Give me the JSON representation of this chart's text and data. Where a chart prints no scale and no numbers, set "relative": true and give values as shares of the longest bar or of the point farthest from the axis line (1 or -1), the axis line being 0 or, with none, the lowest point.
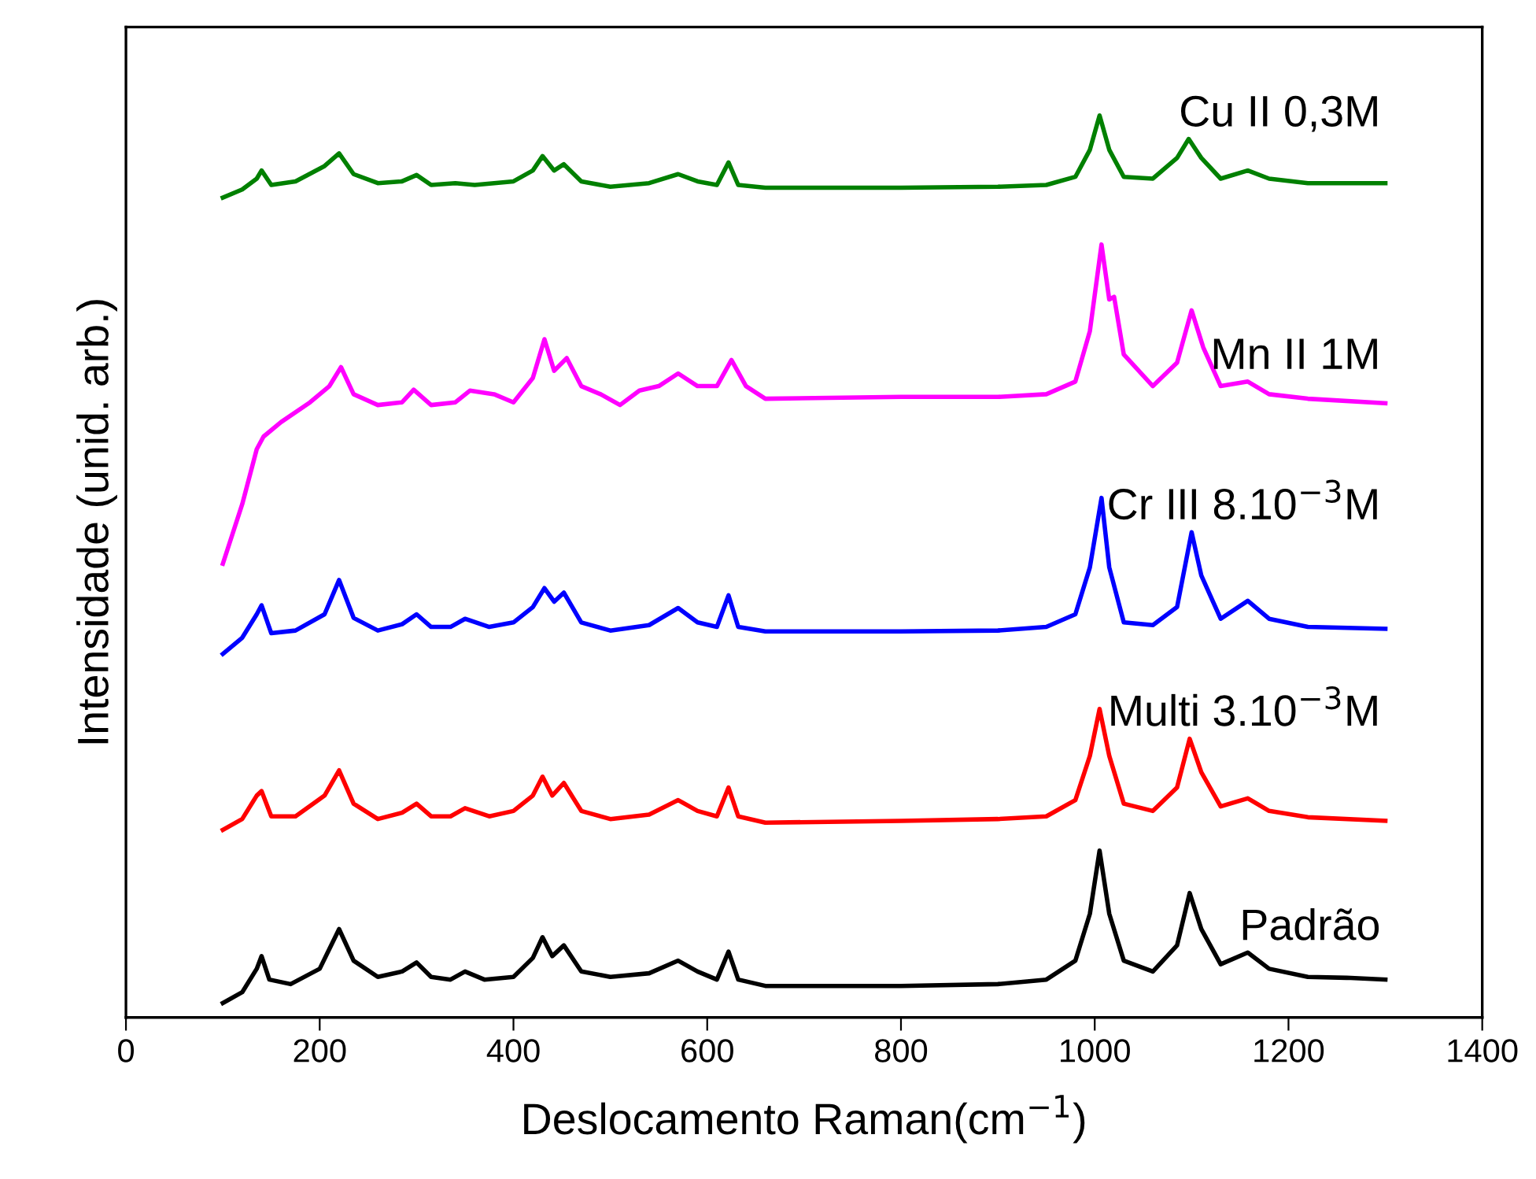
{
  "chart_data": {
    "type": "line",
    "relative": true,
    "xlabel": "Deslocamento Raman(cm$^{−1}$)",
    "ylabel": "Intensidade (unid. arb.)",
    "xlim": [
      0,
      1400
    ],
    "xticks": [
      0,
      200,
      400,
      600,
      800,
      1000,
      1200,
      1400
    ],
    "grid": false,
    "legend": false,
    "marker": "none",
    "line_style": "solid",
    "series": [
      {
        "name": "Padrão",
        "color": "#000000",
        "x": [
          100,
          120,
          135,
          140,
          148,
          170,
          200,
          220,
          235,
          260,
          285,
          300,
          315,
          335,
          350,
          370,
          400,
          420,
          430,
          440,
          452,
          470,
          500,
          540,
          570,
          590,
          610,
          622,
          632,
          660,
          700,
          800,
          900,
          950,
          980,
          995,
          1005,
          1015,
          1030,
          1060,
          1085,
          1098,
          1110,
          1130,
          1158,
          1180,
          1220,
          1260,
          1300
        ],
        "values": [
          0.016,
          0.028,
          0.054,
          0.068,
          0.042,
          0.037,
          0.054,
          0.098,
          0.063,
          0.045,
          0.051,
          0.061,
          0.045,
          0.042,
          0.051,
          0.042,
          0.045,
          0.066,
          0.089,
          0.068,
          0.08,
          0.051,
          0.045,
          0.049,
          0.063,
          0.051,
          0.042,
          0.073,
          0.042,
          0.035,
          0.035,
          0.035,
          0.037,
          0.042,
          0.063,
          0.115,
          0.185,
          0.115,
          0.063,
          0.051,
          0.08,
          0.138,
          0.098,
          0.059,
          0.072,
          0.054,
          0.045,
          0.044,
          0.042
        ]
      },
      {
        "name": "Multi 3.10$^{−3}$M",
        "color": "#ff0000",
        "x": [
          100,
          120,
          135,
          140,
          150,
          175,
          205,
          220,
          235,
          260,
          285,
          300,
          315,
          335,
          350,
          375,
          400,
          420,
          430,
          440,
          452,
          470,
          500,
          540,
          570,
          590,
          610,
          622,
          632,
          660,
          800,
          900,
          950,
          980,
          995,
          1005,
          1015,
          1030,
          1060,
          1085,
          1098,
          1110,
          1130,
          1158,
          1180,
          1220,
          1300
        ],
        "values": [
          0.208,
          0.22,
          0.246,
          0.251,
          0.223,
          0.223,
          0.246,
          0.274,
          0.237,
          0.22,
          0.227,
          0.237,
          0.223,
          0.223,
          0.232,
          0.223,
          0.229,
          0.246,
          0.267,
          0.246,
          0.26,
          0.229,
          0.22,
          0.225,
          0.241,
          0.229,
          0.223,
          0.255,
          0.223,
          0.216,
          0.218,
          0.22,
          0.223,
          0.241,
          0.29,
          0.342,
          0.29,
          0.237,
          0.229,
          0.255,
          0.309,
          0.272,
          0.234,
          0.243,
          0.229,
          0.222,
          0.218
        ]
      },
      {
        "name": "Cr III 8.10$^{−3}$M",
        "color": "#0000ff",
        "x": [
          100,
          120,
          135,
          140,
          150,
          175,
          205,
          220,
          235,
          260,
          285,
          300,
          315,
          335,
          350,
          375,
          400,
          420,
          432,
          442,
          452,
          470,
          500,
          540,
          570,
          590,
          610,
          622,
          632,
          660,
          800,
          900,
          950,
          980,
          995,
          1007,
          1015,
          1030,
          1060,
          1085,
          1100,
          1110,
          1130,
          1158,
          1180,
          1220,
          1300
        ],
        "values": [
          0.403,
          0.421,
          0.447,
          0.457,
          0.426,
          0.429,
          0.447,
          0.485,
          0.443,
          0.429,
          0.436,
          0.447,
          0.433,
          0.433,
          0.442,
          0.433,
          0.438,
          0.455,
          0.476,
          0.461,
          0.471,
          0.438,
          0.429,
          0.435,
          0.454,
          0.438,
          0.433,
          0.468,
          0.433,
          0.428,
          0.428,
          0.429,
          0.433,
          0.447,
          0.499,
          0.576,
          0.499,
          0.438,
          0.435,
          0.455,
          0.538,
          0.49,
          0.442,
          0.462,
          0.442,
          0.433,
          0.431
        ]
      },
      {
        "name": "Mn II 1M",
        "color": "#ff00ff",
        "x": [
          100,
          120,
          135,
          142,
          160,
          190,
          210,
          222,
          235,
          260,
          285,
          297,
          315,
          340,
          355,
          380,
          400,
          420,
          432,
          442,
          455,
          470,
          490,
          510,
          530,
          550,
          570,
          590,
          610,
          625,
          640,
          660,
          800,
          900,
          950,
          980,
          995,
          1007,
          1015,
          1020,
          1030,
          1060,
          1085,
          1100,
          1112,
          1130,
          1158,
          1180,
          1220,
          1300
        ],
        "values": [
          0.503,
          0.569,
          0.63,
          0.644,
          0.66,
          0.682,
          0.7,
          0.721,
          0.691,
          0.679,
          0.682,
          0.696,
          0.679,
          0.682,
          0.695,
          0.691,
          0.682,
          0.709,
          0.752,
          0.717,
          0.731,
          0.7,
          0.691,
          0.679,
          0.695,
          0.7,
          0.714,
          0.7,
          0.7,
          0.729,
          0.7,
          0.686,
          0.688,
          0.688,
          0.691,
          0.705,
          0.761,
          0.857,
          0.796,
          0.799,
          0.735,
          0.7,
          0.726,
          0.784,
          0.743,
          0.7,
          0.705,
          0.691,
          0.686,
          0.681
        ]
      },
      {
        "name": "Cu II 0,3M",
        "color": "#008000",
        "x": [
          100,
          120,
          135,
          140,
          150,
          175,
          205,
          220,
          235,
          260,
          285,
          300,
          315,
          340,
          360,
          400,
          420,
          430,
          442,
          452,
          470,
          500,
          540,
          570,
          590,
          610,
          622,
          632,
          660,
          800,
          900,
          950,
          980,
          995,
          1005,
          1015,
          1030,
          1060,
          1085,
          1097,
          1110,
          1130,
          1158,
          1180,
          1220,
          1300
        ],
        "values": [
          0.909,
          0.918,
          0.93,
          0.939,
          0.923,
          0.927,
          0.944,
          0.958,
          0.935,
          0.925,
          0.927,
          0.934,
          0.923,
          0.925,
          0.923,
          0.927,
          0.939,
          0.955,
          0.939,
          0.946,
          0.927,
          0.921,
          0.925,
          0.935,
          0.927,
          0.923,
          0.948,
          0.923,
          0.92,
          0.92,
          0.921,
          0.923,
          0.932,
          0.962,
          1.0,
          0.962,
          0.932,
          0.93,
          0.953,
          0.974,
          0.953,
          0.93,
          0.939,
          0.93,
          0.925,
          0.925
        ]
      }
    ]
  }
}
